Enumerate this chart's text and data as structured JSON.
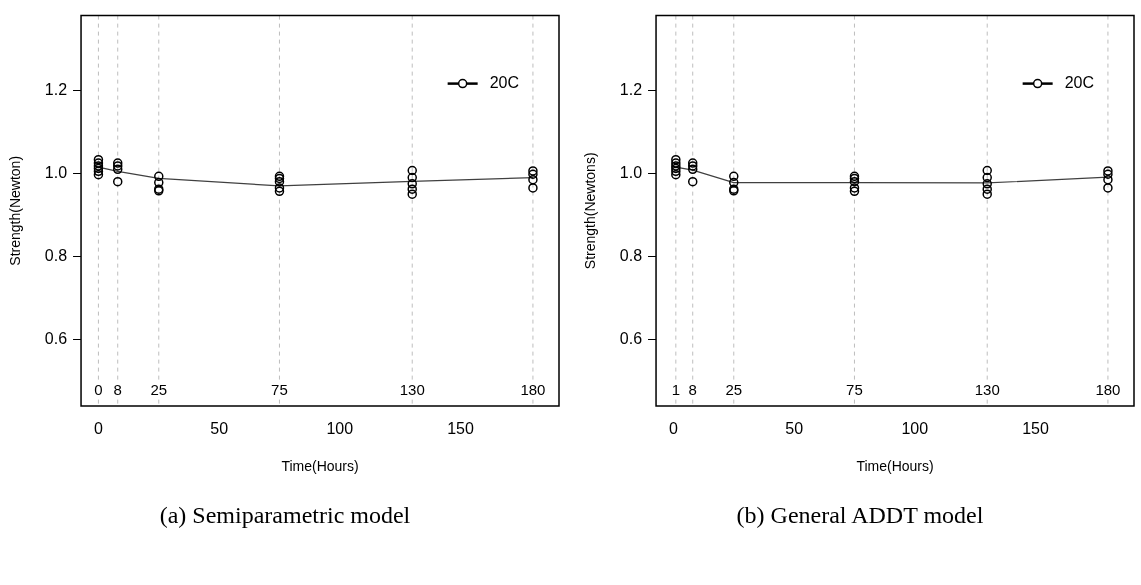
{
  "chart_data": [
    {
      "type": "scatter",
      "xlabel": "Time(Hours)",
      "ylabel": "Strength(Newton)",
      "annotations": [
        "(a)  Semiparametric model"
      ],
      "xlim": [
        -7.2,
        190.8
      ],
      "ylim": [
        0.44,
        1.38
      ],
      "xticks": [
        0,
        50,
        100,
        150
      ],
      "yticks": [
        {
          "value": 0.6,
          "label": "0.6"
        },
        {
          "value": 0.8,
          "label": "0.8"
        },
        {
          "value": 1,
          "label": "1.0"
        },
        {
          "value": 1.2,
          "label": "1.2"
        }
      ],
      "grid": false,
      "legend": "top right",
      "ref_lines": [
        {
          "axis": "x",
          "value": 0,
          "label": "0",
          "color": "#bebebe",
          "line_style": "dashed"
        },
        {
          "axis": "x",
          "value": 8,
          "label": "8",
          "color": "#bebebe",
          "line_style": "dashed"
        },
        {
          "axis": "x",
          "value": 25,
          "label": "25",
          "color": "#bebebe",
          "line_style": "dashed"
        },
        {
          "axis": "x",
          "value": 75,
          "label": "75",
          "color": "#bebebe",
          "line_style": "dashed"
        },
        {
          "axis": "x",
          "value": 130,
          "label": "130",
          "color": "#bebebe",
          "line_style": "dashed"
        },
        {
          "axis": "x",
          "value": 180,
          "label": "180",
          "color": "#bebebe",
          "line_style": "dashed"
        }
      ],
      "series": [
        {
          "name": "20C",
          "marker": "circle",
          "color": "#000000",
          "x": [
            0,
            0,
            0,
            0,
            0,
            0,
            8,
            8,
            8,
            8,
            25,
            25,
            25,
            25,
            75,
            75,
            75,
            75,
            75,
            130,
            130,
            130,
            130,
            130,
            180,
            180,
            180,
            180
          ],
          "values": [
            1.033,
            1.025,
            1.018,
            1.012,
            1.005,
            0.997,
            1.025,
            1.018,
            1.01,
            0.98,
            0.993,
            0.978,
            0.962,
            0.958,
            0.993,
            0.988,
            0.98,
            0.965,
            0.957,
            1.007,
            0.99,
            0.975,
            0.962,
            0.95,
            1.006,
            0.998,
            0.985,
            0.965
          ]
        },
        {
          "type": "line",
          "color": "#404040",
          "x": [
            0,
            8,
            25,
            75,
            130,
            180
          ],
          "values": [
            1.015,
            1.005,
            0.988,
            0.97,
            0.981,
            0.99
          ]
        }
      ]
    },
    {
      "type": "scatter",
      "xlabel": "Time(Hours)",
      "ylabel": "Strength(Newtons)",
      "annotations": [
        "(b) General ADDT model"
      ],
      "xlim": [
        -7.2,
        190.8
      ],
      "ylim": [
        0.44,
        1.38
      ],
      "xticks": [
        0,
        50,
        100,
        150
      ],
      "yticks": [
        {
          "value": 0.6,
          "label": "0.6"
        },
        {
          "value": 0.8,
          "label": "0.8"
        },
        {
          "value": 1,
          "label": "1.0"
        },
        {
          "value": 1.2,
          "label": "1.2"
        }
      ],
      "grid": false,
      "legend": "top right",
      "ref_lines": [
        {
          "axis": "x",
          "value": 1,
          "label": "1",
          "color": "#bebebe",
          "line_style": "dashed"
        },
        {
          "axis": "x",
          "value": 8,
          "label": "8",
          "color": "#bebebe",
          "line_style": "dashed"
        },
        {
          "axis": "x",
          "value": 25,
          "label": "25",
          "color": "#bebebe",
          "line_style": "dashed"
        },
        {
          "axis": "x",
          "value": 75,
          "label": "75",
          "color": "#bebebe",
          "line_style": "dashed"
        },
        {
          "axis": "x",
          "value": 130,
          "label": "130",
          "color": "#bebebe",
          "line_style": "dashed"
        },
        {
          "axis": "x",
          "value": 180,
          "label": "180",
          "color": "#bebebe",
          "line_style": "dashed"
        }
      ],
      "series": [
        {
          "name": "20C",
          "marker": "circle",
          "color": "#000000",
          "x": [
            1,
            1,
            1,
            1,
            1,
            1,
            8,
            8,
            8,
            8,
            25,
            25,
            25,
            25,
            75,
            75,
            75,
            75,
            75,
            130,
            130,
            130,
            130,
            130,
            180,
            180,
            180,
            180
          ],
          "values": [
            1.033,
            1.025,
            1.018,
            1.012,
            1.005,
            0.997,
            1.025,
            1.018,
            1.01,
            0.98,
            0.993,
            0.978,
            0.962,
            0.958,
            0.993,
            0.988,
            0.98,
            0.965,
            0.957,
            1.007,
            0.99,
            0.975,
            0.962,
            0.95,
            1.006,
            0.998,
            0.985,
            0.965
          ]
        },
        {
          "type": "line",
          "color": "#404040",
          "x": [
            1,
            8,
            25,
            75,
            130,
            180
          ],
          "values": [
            1.015,
            1.008,
            0.978,
            0.978,
            0.977,
            0.991
          ]
        }
      ]
    }
  ]
}
